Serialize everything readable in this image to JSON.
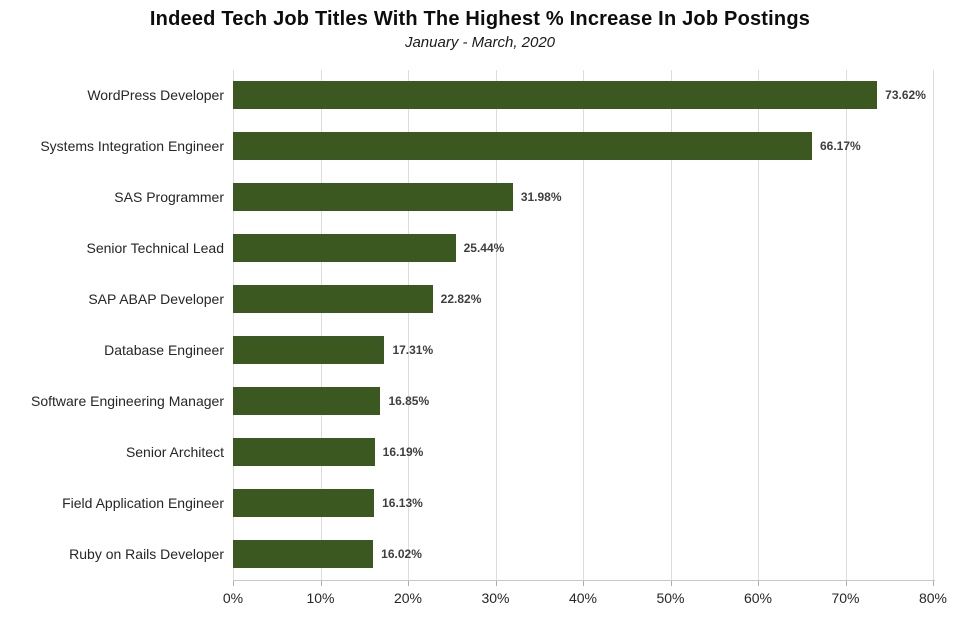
{
  "chart_data": {
    "type": "bar",
    "orientation": "horizontal",
    "title": "Indeed Tech Job Titles With The Highest % Increase In Job Postings",
    "subtitle": "January - March, 2020",
    "categories": [
      "WordPress Developer",
      "Systems Integration Engineer",
      "SAS Programmer",
      "Senior Technical Lead",
      "SAP ABAP Developer",
      "Database Engineer",
      "Software Engineering Manager",
      "Senior Architect",
      "Field Application Engineer",
      "Ruby on Rails Developer"
    ],
    "values": [
      73.62,
      66.17,
      31.98,
      25.44,
      22.82,
      17.31,
      16.85,
      16.19,
      16.13,
      16.02
    ],
    "value_labels": [
      "73.62%",
      "66.17%",
      "31.98%",
      "25.44%",
      "22.82%",
      "17.31%",
      "16.85%",
      "16.19%",
      "16.13%",
      "16.02%"
    ],
    "xlabel": "",
    "ylabel": "",
    "xlim": [
      0,
      80
    ],
    "x_tick_values": [
      0,
      10,
      20,
      30,
      40,
      50,
      60,
      70,
      80
    ],
    "x_tick_labels": [
      "0%",
      "10%",
      "20%",
      "30%",
      "40%",
      "50%",
      "60%",
      "70%",
      "80%"
    ],
    "grid": "vertical-gridlines-on",
    "legend": "none",
    "colors": {
      "bar": "#3c5821",
      "gridline": "#dcdcdc",
      "axis_line": "#c8c8c8",
      "tick_mark": "#adadad",
      "category_text": "#262626",
      "value_text": "#3f3f3f",
      "title_text": "#0d0d0d"
    }
  }
}
